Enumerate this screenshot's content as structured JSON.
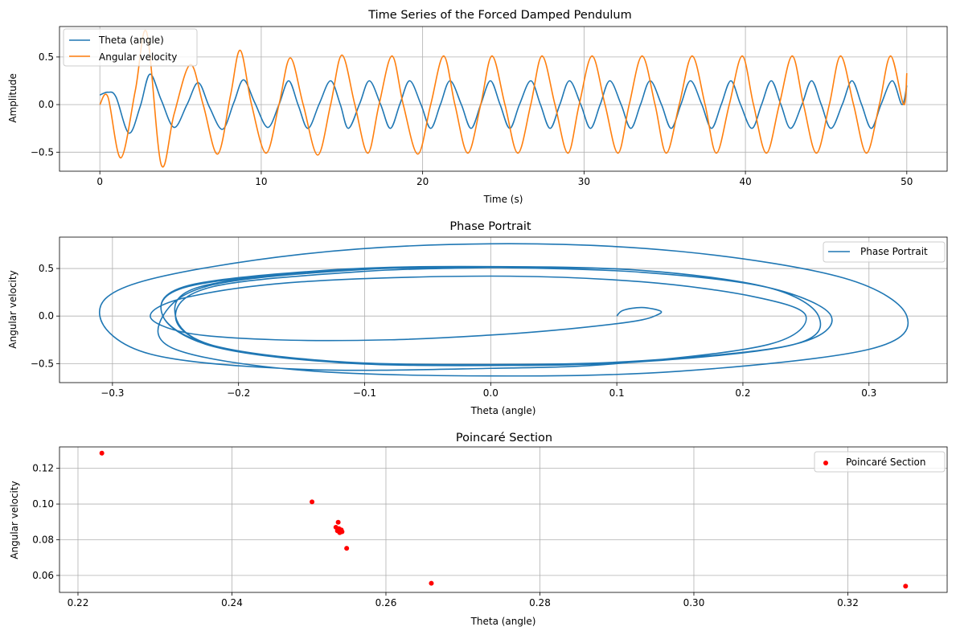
{
  "chart_data": [
    {
      "type": "line",
      "title": "Time Series of the Forced Damped Pendulum",
      "xlabel": "Time (s)",
      "ylabel": "Amplitude",
      "xlim": [
        -2.5,
        52.5
      ],
      "ylim": [
        -0.7,
        0.82
      ],
      "xticks": [
        0,
        10,
        20,
        30,
        40,
        50
      ],
      "yticks": [
        -0.5,
        0.0,
        0.5
      ],
      "xtick_labels": [
        "0",
        "10",
        "20",
        "30",
        "40",
        "50"
      ],
      "ytick_labels": [
        "−0.5",
        "0.0",
        "0.5"
      ],
      "grid": true,
      "legend": "upper-left",
      "series": [
        {
          "name": "Theta (angle)",
          "color": "#1f77b4",
          "x": [
            0,
            0.5,
            1.0,
            1.8,
            2.5,
            3.1,
            3.8,
            4.6,
            5.4,
            6.1,
            6.8,
            7.6,
            8.3,
            8.9,
            9.6,
            10.4,
            11.1,
            11.7,
            12.3,
            12.9,
            13.6,
            14.3,
            14.9,
            15.4,
            16.1,
            16.7,
            17.4,
            18.0,
            18.6,
            19.2,
            19.9,
            20.5,
            21.1,
            21.7,
            22.4,
            23.0,
            23.6,
            24.2,
            24.8,
            25.4,
            26.0,
            26.7,
            27.3,
            27.9,
            28.5,
            29.1,
            29.8,
            30.4,
            31.0,
            31.6,
            32.3,
            32.9,
            33.5,
            34.1,
            34.8,
            35.4,
            36.0,
            36.6,
            37.3,
            37.9,
            38.5,
            39.1,
            39.7,
            40.4,
            41.0,
            41.6,
            42.2,
            42.8,
            43.5,
            44.1,
            44.7,
            45.3,
            46.0,
            46.6,
            47.2,
            47.8,
            48.4,
            49.1,
            49.7,
            50.0
          ],
          "y": [
            0.1,
            0.13,
            0.08,
            -0.3,
            -0.02,
            0.32,
            0.05,
            -0.24,
            0.0,
            0.23,
            -0.03,
            -0.26,
            0.02,
            0.26,
            0.02,
            -0.24,
            0.0,
            0.25,
            -0.01,
            -0.25,
            0.01,
            0.25,
            0.0,
            -0.25,
            0.01,
            0.25,
            0.0,
            -0.25,
            0.01,
            0.25,
            0.0,
            -0.25,
            0.0,
            0.25,
            0.0,
            -0.25,
            0.0,
            0.25,
            0.0,
            -0.25,
            0.0,
            0.25,
            0.0,
            -0.25,
            0.0,
            0.25,
            0.0,
            -0.25,
            0.0,
            0.25,
            0.0,
            -0.25,
            0.0,
            0.25,
            0.0,
            -0.25,
            0.0,
            0.25,
            0.0,
            -0.25,
            0.0,
            0.25,
            0.0,
            -0.25,
            0.0,
            0.25,
            0.0,
            -0.25,
            0.0,
            0.25,
            0.0,
            -0.25,
            0.0,
            0.25,
            0.0,
            -0.25,
            0.0,
            0.25,
            0.0,
            0.2
          ]
        },
        {
          "name": "Angular velocity",
          "color": "#ff7f0e",
          "x": [
            0,
            0.5,
            1.3,
            2.2,
            2.9,
            3.8,
            4.6,
            5.6,
            6.4,
            7.3,
            8.1,
            8.7,
            9.4,
            10.3,
            11.1,
            11.8,
            12.6,
            13.5,
            14.3,
            15.0,
            15.8,
            16.6,
            17.3,
            18.1,
            18.8,
            19.7,
            20.5,
            21.3,
            22.0,
            22.8,
            23.6,
            24.3,
            25.1,
            25.9,
            26.7,
            27.4,
            28.2,
            29.0,
            29.7,
            30.5,
            31.3,
            32.1,
            32.8,
            33.6,
            34.4,
            35.1,
            35.9,
            36.7,
            37.5,
            38.2,
            39.0,
            39.8,
            40.5,
            41.3,
            42.1,
            42.9,
            43.6,
            44.4,
            45.2,
            45.9,
            46.7,
            47.5,
            48.3,
            49.0,
            49.8,
            50.0
          ],
          "y": [
            0.0,
            0.08,
            -0.56,
            0.15,
            0.76,
            -0.63,
            -0.1,
            0.42,
            0.0,
            -0.52,
            0.1,
            0.57,
            0.0,
            -0.51,
            0.0,
            0.49,
            0.0,
            -0.53,
            0.0,
            0.52,
            0.0,
            -0.51,
            0.0,
            0.51,
            0.0,
            -0.52,
            0.0,
            0.51,
            0.0,
            -0.51,
            0.0,
            0.51,
            0.0,
            -0.51,
            0.0,
            0.51,
            0.0,
            -0.51,
            0.0,
            0.51,
            0.0,
            -0.51,
            0.0,
            0.51,
            0.0,
            -0.51,
            0.0,
            0.51,
            0.0,
            -0.51,
            0.0,
            0.51,
            0.0,
            -0.51,
            0.0,
            0.51,
            0.0,
            -0.51,
            0.0,
            0.51,
            0.0,
            -0.51,
            0.0,
            0.51,
            0.0,
            0.33
          ]
        }
      ]
    },
    {
      "type": "line",
      "title": "Phase Portrait",
      "xlabel": "Theta (angle)",
      "ylabel": "Angular velocity",
      "xlim": [
        -0.342,
        0.362
      ],
      "ylim": [
        -0.7,
        0.83
      ],
      "xticks": [
        -0.3,
        -0.2,
        -0.1,
        0.0,
        0.1,
        0.2,
        0.3
      ],
      "yticks": [
        -0.5,
        0.0,
        0.5
      ],
      "xtick_labels": [
        "−0.3",
        "−0.2",
        "−0.1",
        "0.0",
        "0.1",
        "0.2",
        "0.3"
      ],
      "ytick_labels": [
        "−0.5",
        "0.0",
        "0.5"
      ],
      "grid": true,
      "legend": "upper-right",
      "series": [
        {
          "name": "Phase Portrait",
          "color": "#1f77b4",
          "x": [
            0.1,
            0.105,
            0.12,
            0.135,
            0.13,
            0.12,
            0.1,
            0.05,
            0.0,
            -0.08,
            -0.17,
            -0.24,
            -0.27,
            -0.24,
            -0.15,
            0.0,
            0.12,
            0.21,
            0.25,
            0.22,
            0.1,
            0.0,
            -0.15,
            -0.27,
            -0.31,
            -0.28,
            -0.15,
            0.0,
            0.15,
            0.28,
            0.33,
            0.3,
            0.15,
            0.0,
            -0.15,
            -0.25,
            -0.26,
            -0.22,
            -0.1,
            0.0,
            0.12,
            0.22,
            0.27,
            0.24,
            0.12,
            0.0,
            -0.12,
            -0.22,
            -0.26,
            -0.24,
            -0.12,
            0.0,
            0.12,
            0.22,
            0.26,
            0.24,
            0.12,
            0.0,
            -0.12,
            -0.22,
            -0.26,
            -0.24,
            -0.12,
            0.0,
            0.12,
            0.22,
            0.26,
            0.24,
            0.12,
            0.0,
            -0.12,
            -0.22,
            -0.25,
            -0.23,
            -0.12,
            0.0,
            0.12,
            0.22,
            0.26,
            0.24,
            0.12,
            0.0,
            -0.12,
            -0.22,
            -0.25,
            -0.22,
            -0.1,
            0.0
          ],
          "y": [
            0.0,
            0.06,
            0.09,
            0.05,
            0.0,
            -0.04,
            -0.08,
            -0.15,
            -0.2,
            -0.25,
            -0.25,
            -0.18,
            0.0,
            0.2,
            0.36,
            0.42,
            0.36,
            0.2,
            0.0,
            -0.3,
            -0.5,
            -0.55,
            -0.56,
            -0.4,
            0.0,
            0.35,
            0.65,
            0.76,
            0.68,
            0.4,
            0.0,
            -0.35,
            -0.58,
            -0.63,
            -0.57,
            -0.35,
            0.0,
            0.33,
            0.49,
            0.51,
            0.46,
            0.3,
            0.0,
            -0.3,
            -0.48,
            -0.52,
            -0.49,
            -0.32,
            0.0,
            0.32,
            0.49,
            0.52,
            0.48,
            0.3,
            0.0,
            -0.3,
            -0.48,
            -0.51,
            -0.48,
            -0.31,
            0.0,
            0.31,
            0.48,
            0.51,
            0.48,
            0.3,
            0.0,
            -0.3,
            -0.47,
            -0.51,
            -0.48,
            -0.31,
            0.0,
            0.31,
            0.48,
            0.51,
            0.48,
            0.3,
            0.0,
            -0.3,
            -0.47,
            -0.51,
            -0.48,
            -0.31,
            0.0,
            0.31,
            0.47,
            0.51
          ]
        }
      ]
    },
    {
      "type": "scatter",
      "title": "Poincaré Section",
      "xlabel": "Theta (angle)",
      "ylabel": "Angular velocity",
      "xlim": [
        0.2176,
        0.3329
      ],
      "ylim": [
        0.0505,
        0.132
      ],
      "xticks": [
        0.22,
        0.24,
        0.26,
        0.28,
        0.3,
        0.32
      ],
      "yticks": [
        0.06,
        0.08,
        0.1,
        0.12
      ],
      "xtick_labels": [
        "0.22",
        "0.24",
        "0.26",
        "0.28",
        "0.30",
        "0.32"
      ],
      "ytick_labels": [
        "0.06",
        "0.08",
        "0.10",
        "0.12"
      ],
      "grid": true,
      "legend": "upper-right",
      "series": [
        {
          "name": "Poincaré Section",
          "color": "#ff0000",
          "x": [
            0.2231,
            0.2504,
            0.2538,
            0.2535,
            0.2539,
            0.2542,
            0.2537,
            0.2543,
            0.254,
            0.2549,
            0.2659,
            0.3275
          ],
          "y": [
            0.1285,
            0.1012,
            0.0898,
            0.087,
            0.0862,
            0.0855,
            0.085,
            0.0845,
            0.084,
            0.0752,
            0.0556,
            0.054
          ]
        }
      ]
    }
  ]
}
